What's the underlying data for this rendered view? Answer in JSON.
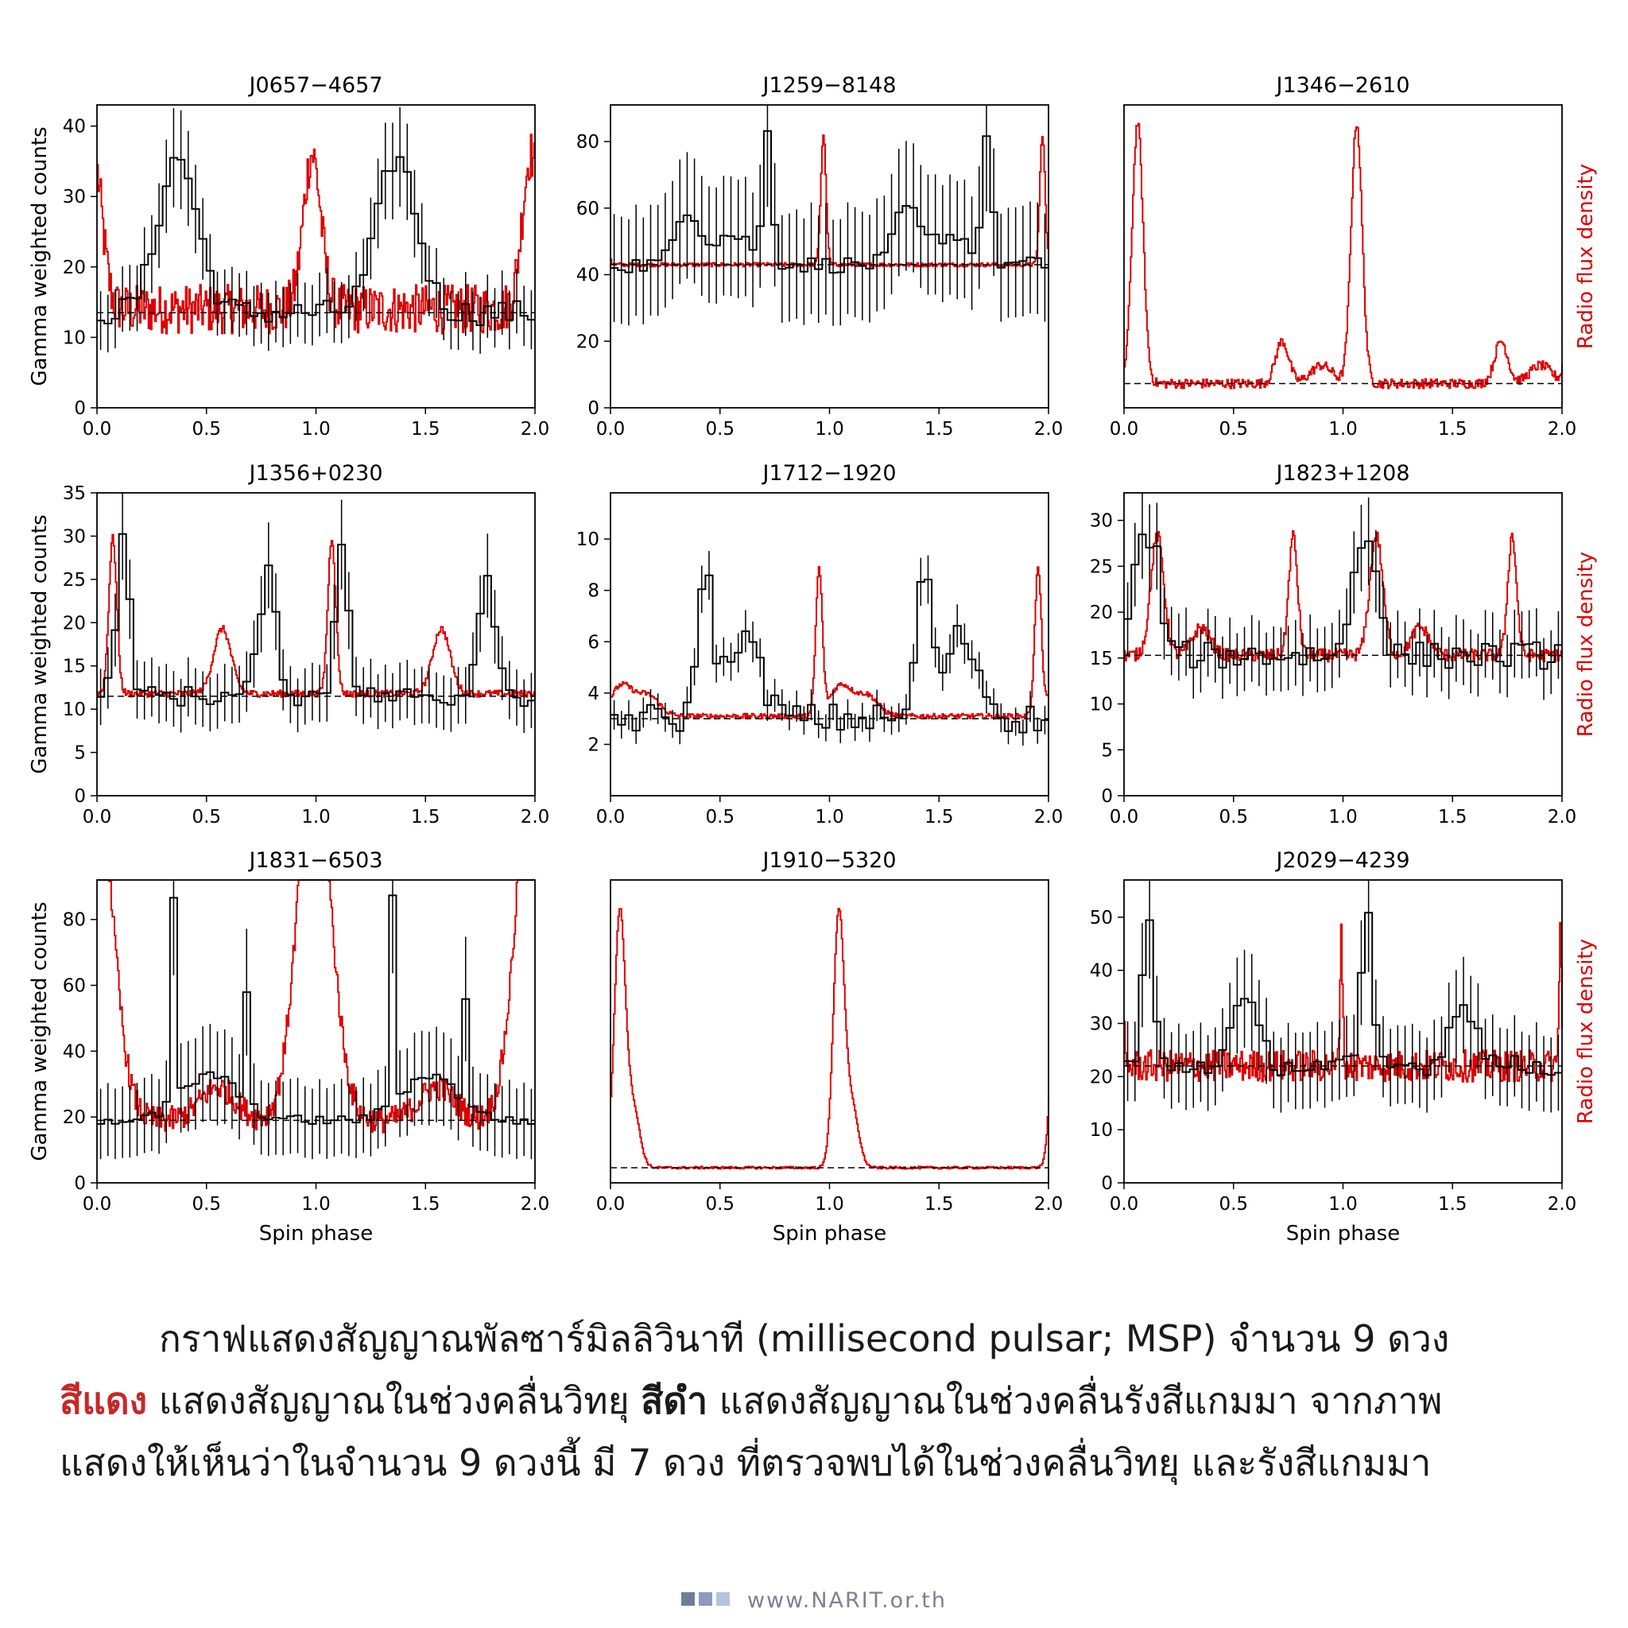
{
  "chart_data": {
    "type": "line",
    "panels": [
      {
        "title": "J0657−4657",
        "gamma_baseline": 13.5,
        "radio_baseline": 14,
        "yticks": [
          0,
          10,
          20,
          30,
          40
        ],
        "ymax": 43,
        "left_label": true,
        "right_label": false,
        "xlabel": "",
        "gamma_peaks": [
          [
            0.37,
            0.09,
            22
          ]
        ],
        "radio_peaks": [
          [
            0.98,
            0.04,
            22
          ]
        ],
        "radio_noise": 3.5,
        "gamma_noise": 1.8
      },
      {
        "title": "J1259−8148",
        "gamma_baseline": 43,
        "radio_baseline": 43,
        "yticks": [
          0,
          20,
          40,
          60,
          80
        ],
        "ymax": 91,
        "left_label": false,
        "right_label": false,
        "xlabel": "",
        "gamma_peaks": [
          [
            0.35,
            0.05,
            16
          ],
          [
            0.72,
            0.02,
            38
          ],
          [
            0.55,
            0.1,
            9
          ]
        ],
        "radio_peaks": [
          [
            0.97,
            0.012,
            39
          ]
        ],
        "radio_noise": 0.6,
        "gamma_noise": 2.5
      },
      {
        "title": "J1346−2610",
        "gamma_baseline": null,
        "radio_baseline": 8,
        "yticks": [],
        "ymax": 100,
        "left_label": false,
        "right_label": true,
        "xlabel": "",
        "gamma_peaks": [],
        "radio_peaks": [
          [
            0.06,
            0.025,
            86
          ],
          [
            0.72,
            0.03,
            14
          ],
          [
            0.9,
            0.05,
            6
          ]
        ],
        "radio_noise": 1.6,
        "gamma_noise": 0
      },
      {
        "title": "J1356+0230",
        "gamma_baseline": 11.5,
        "radio_baseline": 11.8,
        "yticks": [
          0,
          5,
          10,
          15,
          20,
          25,
          30,
          35
        ],
        "ymax": 35,
        "left_label": true,
        "right_label": false,
        "xlabel": "",
        "gamma_peaks": [
          [
            0.12,
            0.03,
            18
          ],
          [
            0.78,
            0.04,
            14
          ]
        ],
        "radio_peaks": [
          [
            0.07,
            0.018,
            18
          ],
          [
            0.57,
            0.04,
            7.5
          ]
        ],
        "radio_noise": 0.4,
        "gamma_noise": 1.2
      },
      {
        "title": "J1712−1920",
        "gamma_baseline": 3,
        "radio_baseline": 3.1,
        "yticks": [
          2,
          4,
          6,
          8,
          10
        ],
        "ymax": 11.8,
        "left_label": false,
        "right_label": false,
        "xlabel": "",
        "gamma_peaks": [
          [
            0.43,
            0.03,
            5.9
          ],
          [
            0.6,
            0.08,
            3.2
          ]
        ],
        "radio_peaks": [
          [
            0.95,
            0.015,
            5.6
          ],
          [
            1.05,
            0.05,
            1.2
          ],
          [
            0.17,
            0.05,
            0.8
          ]
        ],
        "radio_noise": 0.1,
        "gamma_noise": 0.6
      },
      {
        "title": "J1823+1208",
        "gamma_baseline": 15.3,
        "radio_baseline": 15.3,
        "yticks": [
          0,
          5,
          10,
          15,
          20,
          25,
          30
        ],
        "ymax": 33,
        "left_label": false,
        "right_label": true,
        "xlabel": "",
        "gamma_peaks": [
          [
            0.08,
            0.04,
            12
          ],
          [
            0.15,
            0.03,
            8
          ]
        ],
        "radio_peaks": [
          [
            0.15,
            0.03,
            13
          ],
          [
            0.77,
            0.02,
            13
          ],
          [
            0.35,
            0.04,
            3
          ]
        ],
        "radio_noise": 0.7,
        "gamma_noise": 1.5
      },
      {
        "title": "J1831−6503",
        "gamma_baseline": 19,
        "radio_baseline": 19,
        "yticks": [
          0,
          20,
          40,
          60,
          80
        ],
        "ymax": 92,
        "left_label": true,
        "right_label": false,
        "xlabel": "Spin phase",
        "gamma_peaks": [
          [
            0.35,
            0.012,
            62
          ],
          [
            0.69,
            0.01,
            40
          ],
          [
            0.52,
            0.12,
            14
          ]
        ],
        "radio_peaks": [
          [
            0.0,
            0.08,
            55
          ],
          [
            0.98,
            0.07,
            57
          ],
          [
            0.55,
            0.08,
            10
          ]
        ],
        "radio_noise": 4,
        "gamma_noise": 1.5
      },
      {
        "title": "J1910−5320",
        "gamma_baseline": null,
        "radio_baseline": 5,
        "yticks": [],
        "ymax": 100,
        "left_label": false,
        "right_label": false,
        "xlabel": "Spin phase",
        "gamma_peaks": [],
        "radio_peaks": [
          [
            0.04,
            0.025,
            83
          ],
          [
            0.1,
            0.03,
            20
          ]
        ],
        "radio_noise": 0.4,
        "gamma_noise": 0
      },
      {
        "title": "J2029−4239",
        "gamma_baseline": 22,
        "radio_baseline": 22,
        "yticks": [
          0,
          10,
          20,
          30,
          40,
          50
        ],
        "ymax": 57,
        "left_label": false,
        "right_label": true,
        "xlabel": "Spin phase",
        "gamma_peaks": [
          [
            0.11,
            0.025,
            28
          ],
          [
            0.55,
            0.06,
            12
          ]
        ],
        "radio_peaks": [
          [
            0.99,
            0.006,
            26
          ]
        ],
        "radio_noise": 3,
        "gamma_noise": 2
      }
    ],
    "xlim": [
      0,
      2
    ],
    "xticks": [
      "0.0",
      "0.5",
      "1.0",
      "1.5",
      "2.0"
    ],
    "left_ylabel": "Gamma weighted counts",
    "right_ylabel": "Radio flux density",
    "colors": {
      "gamma": "#000000",
      "radio": "#dd0000",
      "baseline": "#000000",
      "right_label": "#dd0000"
    },
    "series": [
      {
        "name": "Radio"
      },
      {
        "name": "Gamma"
      }
    ]
  },
  "caption": {
    "line1": "กราฟแสดงสัญญาณพัลซาร์มิลลิวินาที (millisecond pulsar; MSP) จำนวน 9 ดวง",
    "red_word": "สีแดง",
    "line2_mid": " แสดงสัญญาณในช่วงคลื่นวิทยุ ",
    "black_word": "สีดำ",
    "line2_end": " แสดงสัญญาณในช่วงคลื่นรังสีแกมมา จากภาพ",
    "line3": "แสดงให้เห็นว่าในจำนวน 9 ดวงนี้ มี 7 ดวง ที่ตรวจพบได้ในช่วงคลื่นวิทยุ และรังสีแกมมา"
  },
  "footer": {
    "url": "www.NARIT.or.th"
  }
}
